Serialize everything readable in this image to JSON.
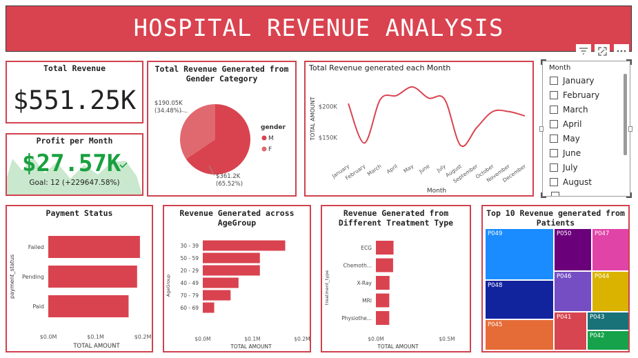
{
  "banner": {
    "title": "HOSPITAL REVENUE ANALYSIS"
  },
  "visual_header": {
    "icons": [
      "filter-icon",
      "focus-mode-icon",
      "more-options-icon"
    ]
  },
  "total_revenue": {
    "title": "Total Revenue",
    "value": "$551.25K"
  },
  "profit": {
    "title": "Profit per Month",
    "value": "$27.57K",
    "goal": "Goal: 12 (+229647.58%)"
  },
  "colors": {
    "accent": "#d9434f",
    "border": "#d0414d",
    "pie_f": "#e0696f",
    "kpi_green": "#19a03f"
  },
  "gender_chart": {
    "title": "Total Revenue Generated from Gender Category",
    "chart_data": {
      "type": "pie",
      "legend_title": "gender",
      "legend_position": "right",
      "slices": [
        {
          "label": "M",
          "value": 361.2,
          "value_label": "$361.2K",
          "pct_label": "(65.52%)"
        },
        {
          "label": "F",
          "value": 190.05,
          "value_label": "$190.05K",
          "pct_label": "(34.48%)"
        }
      ]
    }
  },
  "monthly_chart": {
    "title": "Total Revenue generated each Month",
    "chart_data": {
      "type": "line",
      "xlabel": "Month",
      "ylabel": "TOTAL AMOUNT",
      "categories": [
        "January",
        "February",
        "March",
        "April",
        "May",
        "June",
        "July",
        "August",
        "September",
        "October",
        "November",
        "December"
      ],
      "values": [
        205,
        141,
        212,
        218,
        232,
        214,
        212,
        137,
        166,
        192,
        192,
        185
      ],
      "ylim": [
        110,
        250
      ],
      "y_ticks": [
        {
          "value": 150,
          "label": "$150K"
        },
        {
          "value": 200,
          "label": "$200K"
        }
      ],
      "unit": "K"
    }
  },
  "month_slicer": {
    "title": "Month",
    "items": [
      "January",
      "February",
      "March",
      "April",
      "May",
      "June",
      "July",
      "August"
    ]
  },
  "payment_chart": {
    "title": "Payment Status",
    "chart_data": {
      "type": "bar",
      "orientation": "horizontal",
      "xlabel": "TOTAL AMOUNT",
      "ylabel": "payment_status",
      "categories": [
        "Failed",
        "Pending",
        "Paid"
      ],
      "values": [
        0.194,
        0.188,
        0.17
      ],
      "xlim": [
        0,
        0.2
      ],
      "x_ticks": [
        "$0.0M",
        "$0.1M",
        "$0.2M"
      ]
    }
  },
  "age_chart": {
    "title": "Revenue Generated across AgeGroup",
    "chart_data": {
      "type": "bar",
      "orientation": "horizontal",
      "xlabel": "TOTAL AMOUNT",
      "ylabel": "AgeGroup",
      "categories": [
        "30 - 39",
        "50 - 59",
        "20 - 29",
        "40 - 49",
        "70 - 79",
        "60 - 69"
      ],
      "values": [
        0.166,
        0.115,
        0.115,
        0.072,
        0.056,
        0.023
      ],
      "xlim": [
        0,
        0.2
      ],
      "x_ticks": [
        "$0.0M",
        "$0.1M",
        "$0.2M"
      ]
    }
  },
  "treatment_chart": {
    "title": "Revenue Generated from Different Treatment Type",
    "chart_data": {
      "type": "bar",
      "orientation": "horizontal",
      "xlabel": "TOTAL AMOUNT",
      "ylabel": "treatment_type",
      "categories": [
        "ECG",
        "Chemoth...",
        "X-Ray",
        "MRI",
        "Physiothe..."
      ],
      "values": [
        0.124,
        0.121,
        0.096,
        0.094,
        0.094
      ],
      "xlim": [
        0,
        0.5
      ],
      "x_ticks": [
        "$0.0M",
        "$0.5M"
      ]
    }
  },
  "treemap_chart": {
    "title": "Top 10 Revenue generated from Patients",
    "chart_data": {
      "type": "treemap",
      "items": [
        {
          "label": "P049",
          "color": "#1a8cff"
        },
        {
          "label": "P048",
          "color": "#12239e"
        },
        {
          "label": "P045",
          "color": "#e66c37"
        },
        {
          "label": "P050",
          "color": "#6b007b"
        },
        {
          "label": "P046",
          "color": "#744ec2"
        },
        {
          "label": "P041",
          "color": "#d64550"
        },
        {
          "label": "P047",
          "color": "#e044a7"
        },
        {
          "label": "P044",
          "color": "#d9b300"
        },
        {
          "label": "P043",
          "color": "#197278"
        },
        {
          "label": "P042",
          "color": "#15a24a"
        }
      ]
    }
  }
}
